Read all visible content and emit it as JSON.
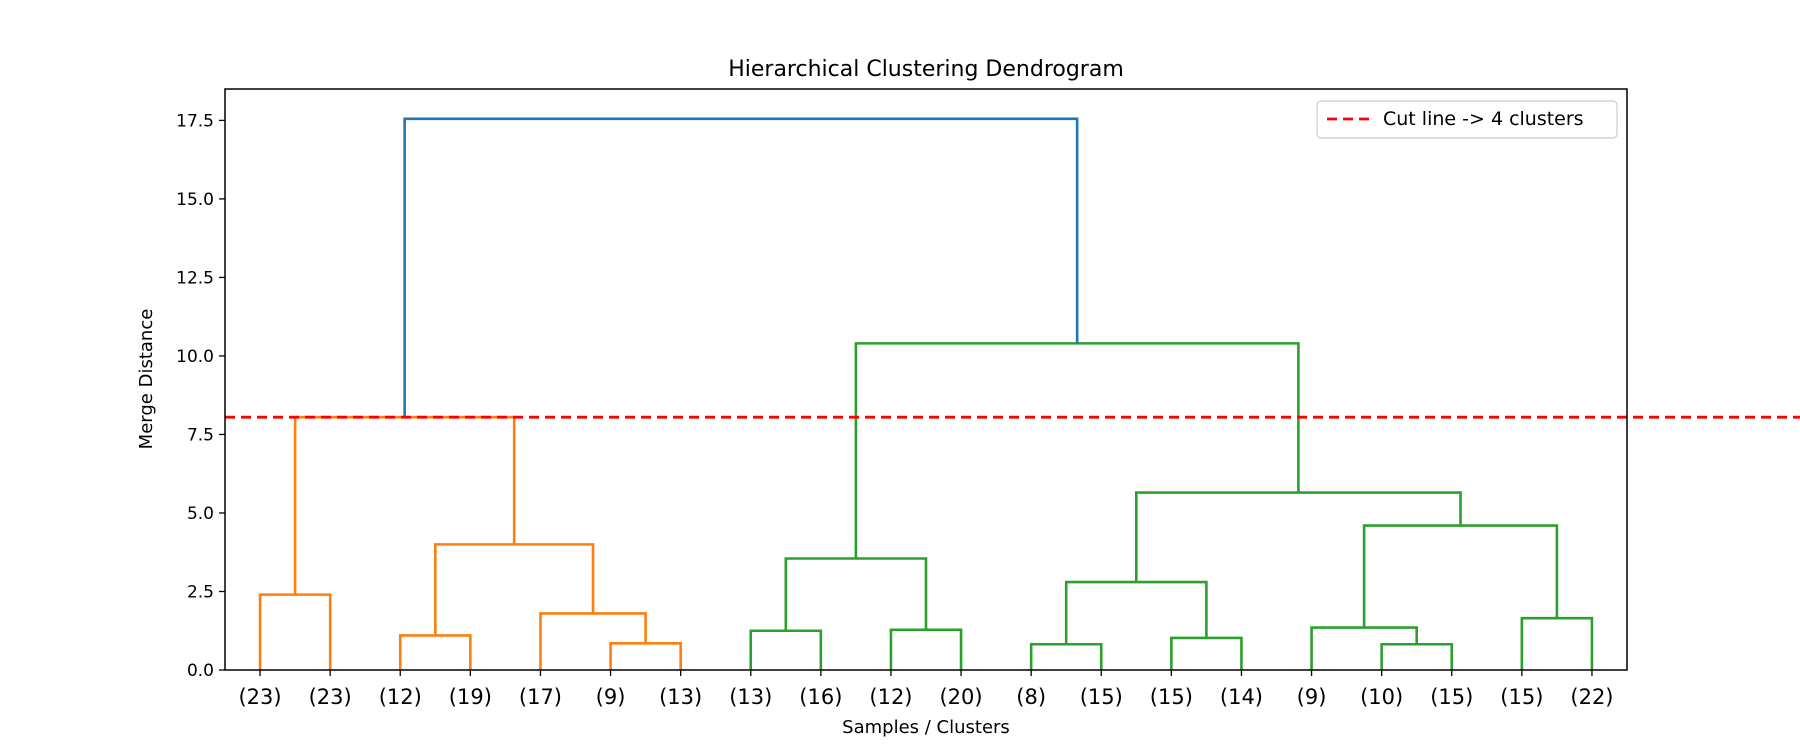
{
  "chart_data": {
    "type": "dendrogram",
    "title": "Hierarchical Clustering Dendrogram",
    "xlabel": "Samples / Clusters",
    "ylabel": "Merge Distance",
    "ylim": [
      0,
      18.5
    ],
    "yticks": [
      "0.0",
      "2.5",
      "5.0",
      "7.5",
      "10.0",
      "12.5",
      "15.0",
      "17.5"
    ],
    "ytick_values": [
      0,
      2.5,
      5.0,
      7.5,
      10.0,
      12.5,
      15.0,
      17.5
    ],
    "leaf_labels": [
      "(23)",
      "(23)",
      "(12)",
      "(19)",
      "(17)",
      "(9)",
      "(13)",
      "(13)",
      "(16)",
      "(12)",
      "(20)",
      "(8)",
      "(15)",
      "(15)",
      "(14)",
      "(9)",
      "(10)",
      "(15)",
      "(15)",
      "(22)"
    ],
    "grid": false,
    "legend_placement": "top-right",
    "legend": [
      {
        "label": "Cut line -> 4 clusters",
        "color": "#ff0000",
        "style": "dashed"
      }
    ],
    "cut_height": 8.05,
    "colors": {
      "orange": "#ff7f0e",
      "green": "#2ca02c",
      "blue": "#1f77b4",
      "cut": "#ff0000"
    },
    "links": [
      {
        "x": [
          1,
          2
        ],
        "left_h": 0,
        "right_h": 0,
        "h": 2.4,
        "color": "orange"
      },
      {
        "x": [
          3,
          4
        ],
        "left_h": 0,
        "right_h": 0,
        "h": 1.1,
        "color": "orange"
      },
      {
        "x": [
          6,
          7
        ],
        "left_h": 0,
        "right_h": 0,
        "h": 0.85,
        "color": "orange"
      },
      {
        "x": [
          5,
          6.5
        ],
        "left_h": 0,
        "right_h": 0.85,
        "h": 1.8,
        "color": "orange"
      },
      {
        "x": [
          3.5,
          5.75
        ],
        "left_h": 1.1,
        "right_h": 1.8,
        "h": 4.0,
        "color": "orange"
      },
      {
        "x": [
          1.5,
          4.625
        ],
        "left_h": 2.4,
        "right_h": 4.0,
        "h": 8.05,
        "color": "orange"
      },
      {
        "x": [
          8,
          9
        ],
        "left_h": 0,
        "right_h": 0,
        "h": 1.25,
        "color": "green"
      },
      {
        "x": [
          10,
          11
        ],
        "left_h": 0,
        "right_h": 0,
        "h": 1.28,
        "color": "green"
      },
      {
        "x": [
          8.5,
          10.5
        ],
        "left_h": 1.25,
        "right_h": 1.28,
        "h": 3.55,
        "color": "green"
      },
      {
        "x": [
          12,
          13
        ],
        "left_h": 0,
        "right_h": 0,
        "h": 0.82,
        "color": "green"
      },
      {
        "x": [
          14,
          15
        ],
        "left_h": 0,
        "right_h": 0,
        "h": 1.02,
        "color": "green"
      },
      {
        "x": [
          12.5,
          14.5
        ],
        "left_h": 0.82,
        "right_h": 1.02,
        "h": 2.8,
        "color": "green"
      },
      {
        "x": [
          17,
          18
        ],
        "left_h": 0,
        "right_h": 0,
        "h": 0.82,
        "color": "green"
      },
      {
        "x": [
          16,
          17.5
        ],
        "left_h": 0,
        "right_h": 0.82,
        "h": 1.35,
        "color": "green"
      },
      {
        "x": [
          19,
          20
        ],
        "left_h": 0,
        "right_h": 0,
        "h": 1.65,
        "color": "green"
      },
      {
        "x": [
          16.75,
          19.5
        ],
        "left_h": 1.35,
        "right_h": 1.65,
        "h": 4.6,
        "color": "green"
      },
      {
        "x": [
          13.5,
          18.125
        ],
        "left_h": 2.8,
        "right_h": 4.6,
        "h": 5.65,
        "color": "green"
      },
      {
        "x": [
          9.5,
          15.8125
        ],
        "left_h": 3.55,
        "right_h": 5.65,
        "h": 10.4,
        "color": "green"
      },
      {
        "x": [
          3.0625,
          12.65625
        ],
        "left_h": 8.05,
        "right_h": 10.4,
        "h": 17.55,
        "color": "blue"
      }
    ]
  }
}
